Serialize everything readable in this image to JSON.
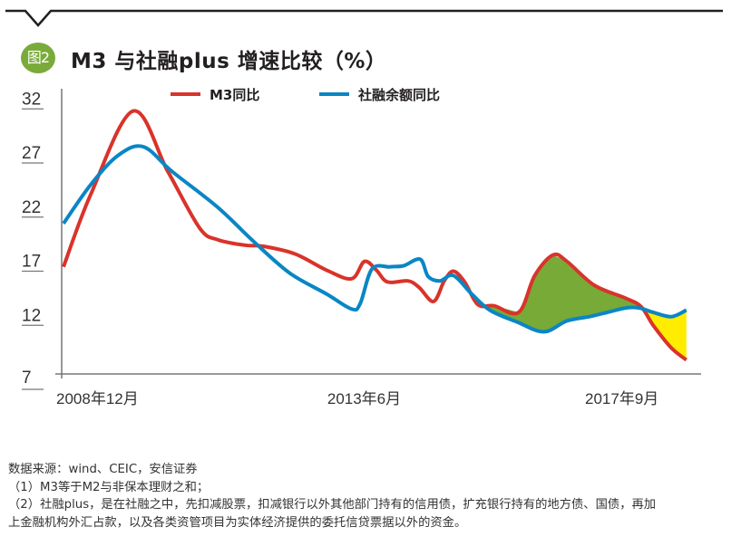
{
  "header": {
    "badge": "图2",
    "title": "M3 与社融plus 增速比较（%）"
  },
  "colors": {
    "m3": "#d9332b",
    "tsf": "#0a86c4",
    "fill_above": "#77aa36",
    "fill_below": "#ffec00",
    "badge": "#7aab3a",
    "axis": "#666666"
  },
  "chart_data": {
    "type": "line",
    "title": "M3 与社融plus 增速比较（%）",
    "xlabel": "",
    "ylabel": "",
    "x_unit": "months since 2008年12月",
    "xlim": [
      0,
      116
    ],
    "ylim": [
      7,
      32
    ],
    "yticks": [
      7,
      12,
      17,
      22,
      27,
      32
    ],
    "xtick_labels": [
      {
        "month": 0,
        "label": "2008年12月"
      },
      {
        "month": 54,
        "label": "2013年6月"
      },
      {
        "month": 105,
        "label": "2017年9月"
      }
    ],
    "grid": false,
    "legend_position": "top-center",
    "legend": [
      "M3同比",
      "社融余额同比"
    ],
    "series": [
      {
        "name": "M3同比",
        "color_key": "m3",
        "points": [
          [
            0,
            16.9
          ],
          [
            5.1,
            23.6
          ],
          [
            13.0,
            31.3
          ],
          [
            19.5,
            25.7
          ],
          [
            25.4,
            20.5
          ],
          [
            28.8,
            19.4
          ],
          [
            33.9,
            18.9
          ],
          [
            37.3,
            18.8
          ],
          [
            43.2,
            18.1
          ],
          [
            49.1,
            16.6
          ],
          [
            53.8,
            15.8
          ],
          [
            56.2,
            17.4
          ],
          [
            58.4,
            16.6
          ],
          [
            60.5,
            15.5
          ],
          [
            64.3,
            15.6
          ],
          [
            66.4,
            15.0
          ],
          [
            69.1,
            13.7
          ],
          [
            71.1,
            15.6
          ],
          [
            72.8,
            16.5
          ],
          [
            74.9,
            15.5
          ],
          [
            77.4,
            13.4
          ],
          [
            80.4,
            13.3
          ],
          [
            85.0,
            12.7
          ],
          [
            88.0,
            16.1
          ],
          [
            91.4,
            18.0
          ],
          [
            94.0,
            17.4
          ],
          [
            99.1,
            15.2
          ],
          [
            105.0,
            14.0
          ],
          [
            107.9,
            13.2
          ],
          [
            110.1,
            11.5
          ],
          [
            113.5,
            9.4
          ],
          [
            116.3,
            8.3
          ]
        ]
      },
      {
        "name": "社融余额同比",
        "color_key": "tsf",
        "points": [
          [
            0,
            20.9
          ],
          [
            5.1,
            24.5
          ],
          [
            10.2,
            27.2
          ],
          [
            14.9,
            28.0
          ],
          [
            20.3,
            25.7
          ],
          [
            28.8,
            22.4
          ],
          [
            35.6,
            19.2
          ],
          [
            42.3,
            16.3
          ],
          [
            49.1,
            14.4
          ],
          [
            53.8,
            13.0
          ],
          [
            55.4,
            13.5
          ],
          [
            57.6,
            16.7
          ],
          [
            60.9,
            16.9
          ],
          [
            63.5,
            17.0
          ],
          [
            66.6,
            17.6
          ],
          [
            68.1,
            16.0
          ],
          [
            70.3,
            15.6
          ],
          [
            72.8,
            16.1
          ],
          [
            76.2,
            14.4
          ],
          [
            79.6,
            12.9
          ],
          [
            84.7,
            11.8
          ],
          [
            89.7,
            10.9
          ],
          [
            94.0,
            11.9
          ],
          [
            98.2,
            12.3
          ],
          [
            101.6,
            12.7
          ],
          [
            105.0,
            13.1
          ],
          [
            107.5,
            13.1
          ],
          [
            110.1,
            12.7
          ],
          [
            113.5,
            12.3
          ],
          [
            116.3,
            12.9
          ]
        ]
      }
    ],
    "shaded_regions": [
      {
        "from_month": 77.4,
        "to_month": 107.5,
        "meaning": "M3同比 above 社融余额同比",
        "color_key": "fill_above"
      },
      {
        "from_month": 107.5,
        "to_month": 116.3,
        "meaning": "M3同比 below 社融余额同比",
        "color_key": "fill_below"
      }
    ]
  },
  "notes": {
    "source": "数据来源：wind、CEIC，安信证券",
    "note1": "（1）M3等于M2与非保本理财之和；",
    "note2_line1": "（2）社融plus，是在社融之中，先扣减股票，扣减银行以外其他部门持有的信用债，扩充银行持有的地方债、国债，再加",
    "note2_line2": "上金融机构外汇占款，以及各类资管项目为实体经济提供的委托信贷票据以外的资金。"
  }
}
